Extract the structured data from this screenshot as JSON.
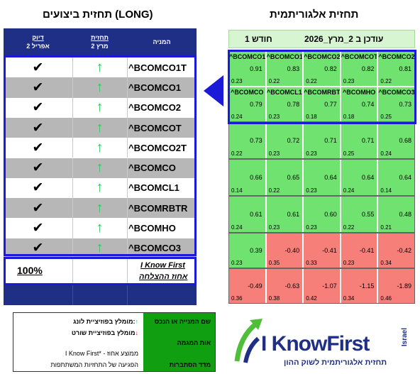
{
  "titles": {
    "left": "תחזית ביצועים (LONG)",
    "right": "תחזית אלגוריתמית"
  },
  "left_table": {
    "headers": {
      "name": "המניה",
      "forecast_top": "תחזית",
      "forecast_bottom": "2 מרץ",
      "accuracy_top": "דיוק",
      "accuracy_bottom": "2 אפריל"
    },
    "rows": [
      {
        "name": "^BCOMCO1T",
        "arrow": "↑",
        "check": "✔"
      },
      {
        "name": "^BCOMCO1",
        "arrow": "↑",
        "check": "✔"
      },
      {
        "name": "^BCOMCO2",
        "arrow": "↑",
        "check": "✔"
      },
      {
        "name": "^BCOMCOT",
        "arrow": "↑",
        "check": "✔"
      },
      {
        "name": "^BCOMCO2T",
        "arrow": "↑",
        "check": "✔"
      },
      {
        "name": "^BCOMCO",
        "arrow": "↑",
        "check": "✔"
      },
      {
        "name": "^BCOMCL1",
        "arrow": "↑",
        "check": "✔"
      },
      {
        "name": "^BCOMRBTR",
        "arrow": "↑",
        "check": "✔"
      },
      {
        "name": "^BCOMHO",
        "arrow": "↑",
        "check": "✔"
      },
      {
        "name": "^BCOMCO3",
        "arrow": "↑",
        "check": "✔"
      }
    ],
    "summary": {
      "brand": "I Know First",
      "label": "אחוז ההצלחה",
      "value": "100%"
    }
  },
  "heatmap": {
    "header_left": "עודכן ב 2_מרץ_2026",
    "header_right": "1 חודש",
    "colors": {
      "positive": "#6fe26f",
      "negative": "#f77f7a"
    },
    "rows": [
      [
        {
          "name": "^BCOMCO1",
          "signal": "0.91",
          "predictability": "0.23"
        },
        {
          "name": "^BCOMCO1T",
          "signal": "0.83",
          "predictability": "0.22"
        },
        {
          "name": "^BCOMCO2",
          "signal": "0.82",
          "predictability": "0.22"
        },
        {
          "name": "^BCOMCOT",
          "signal": "0.82",
          "predictability": "0.23"
        },
        {
          "name": "^BCOMCO2T",
          "signal": "0.81",
          "predictability": "0.22"
        }
      ],
      [
        {
          "name": "^BCOMCO",
          "signal": "0.79",
          "predictability": "0.24"
        },
        {
          "name": "^BCOMCL1",
          "signal": "0.78",
          "predictability": "0.23"
        },
        {
          "name": "^BCOMRBTR",
          "signal": "0.77",
          "predictability": "0.18"
        },
        {
          "name": "^BCOMHO",
          "signal": "0.74",
          "predictability": "0.18"
        },
        {
          "name": "^BCOMCO3",
          "signal": "0.73",
          "predictability": "0.25"
        }
      ],
      [
        {
          "name": "",
          "signal": "0.73",
          "predictability": "0.22"
        },
        {
          "name": "",
          "signal": "0.72",
          "predictability": "0.23"
        },
        {
          "name": "",
          "signal": "0.71",
          "predictability": "0.23"
        },
        {
          "name": "",
          "signal": "0.71",
          "predictability": "0.25"
        },
        {
          "name": "",
          "signal": "0.68",
          "predictability": "0.24"
        }
      ],
      [
        {
          "name": "",
          "signal": "0.66",
          "predictability": "0.14"
        },
        {
          "name": "",
          "signal": "0.65",
          "predictability": "0.22"
        },
        {
          "name": "",
          "signal": "0.64",
          "predictability": "0.23"
        },
        {
          "name": "",
          "signal": "0.64",
          "predictability": "0.24"
        },
        {
          "name": "",
          "signal": "0.64",
          "predictability": "0.14"
        }
      ],
      [
        {
          "name": "",
          "signal": "0.61",
          "predictability": "0.24"
        },
        {
          "name": "",
          "signal": "0.61",
          "predictability": "0.23"
        },
        {
          "name": "",
          "signal": "0.60",
          "predictability": "0.23"
        },
        {
          "name": "",
          "signal": "0.55",
          "predictability": "0.22"
        },
        {
          "name": "",
          "signal": "0.48",
          "predictability": "0.21"
        }
      ],
      [
        {
          "name": "",
          "signal": "0.39",
          "predictability": "0.23"
        },
        {
          "name": "",
          "signal": "-0.40",
          "predictability": "0.35"
        },
        {
          "name": "",
          "signal": "-0.41",
          "predictability": "0.33"
        },
        {
          "name": "",
          "signal": "-0.41",
          "predictability": "0.23"
        },
        {
          "name": "",
          "signal": "-0.42",
          "predictability": "0.34"
        }
      ],
      [
        {
          "name": "",
          "signal": "-0.49",
          "predictability": "0.36"
        },
        {
          "name": "",
          "signal": "-0.63",
          "predictability": "0.38"
        },
        {
          "name": "",
          "signal": "-1.07",
          "predictability": "0.42"
        },
        {
          "name": "",
          "signal": "-1.15",
          "predictability": "0.34"
        },
        {
          "name": "",
          "signal": "-1.89",
          "predictability": "0.46"
        }
      ]
    ]
  },
  "legend": {
    "green_col": [
      "שם המנייה או הנכס",
      "אות המגמה",
      "מדד הסתברות"
    ],
    "white_col": [
      "מומלץ בפוזיציית לונג:",
      "מומלץ בפוזיציית שורט",
      "I Know First* - ממוצע אחוז",
      "הפגיעה של התחזיות המשתתפות"
    ],
    "up_arrow": "↑",
    "down_arrow": "↓"
  },
  "logo": {
    "word": "I KnowFirst",
    "israel": "Israel",
    "tagline": "תחזית אלגוריתמית לשוק ההון"
  }
}
